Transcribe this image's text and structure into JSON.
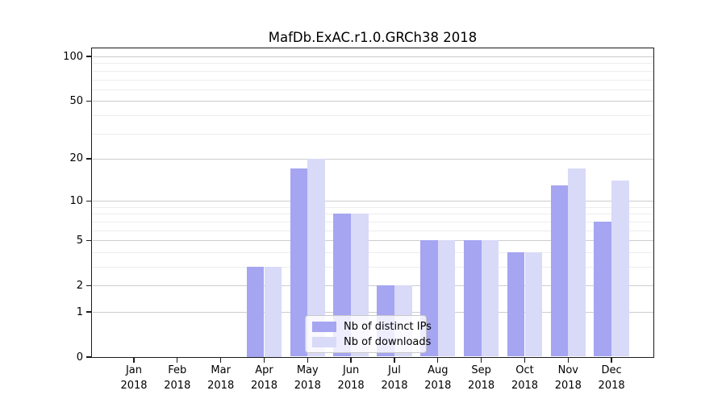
{
  "chart_data": {
    "type": "bar",
    "title": "MafDb.ExAC.r1.0.GRCh38 2018",
    "categories": [
      "Jan 2018",
      "Feb 2018",
      "Mar 2018",
      "Apr 2018",
      "May 2018",
      "Jun 2018",
      "Jul 2018",
      "Aug 2018",
      "Sep 2018",
      "Oct 2018",
      "Nov 2018",
      "Dec 2018"
    ],
    "months": [
      "Jan",
      "Feb",
      "Mar",
      "Apr",
      "May",
      "Jun",
      "Jul",
      "Aug",
      "Sep",
      "Oct",
      "Nov",
      "Dec"
    ],
    "year": "2018",
    "series": [
      {
        "name": "Nb of distinct IPs",
        "color": "#a5a5f2",
        "values": [
          0,
          0,
          0,
          3,
          17,
          8,
          2,
          5,
          5,
          4,
          13,
          7
        ]
      },
      {
        "name": "Nb of downloads",
        "color": "#d9d9f8",
        "values": [
          0,
          0,
          0,
          3,
          20,
          8,
          2,
          5,
          5,
          4,
          17,
          14
        ]
      }
    ],
    "xlabel": "",
    "ylabel": "",
    "yscale": "log1p",
    "ylim": [
      0,
      113
    ],
    "yticks": [
      0,
      1,
      2,
      5,
      10,
      20,
      50,
      100
    ],
    "yticks_minor": [
      3,
      4,
      6,
      7,
      8,
      9,
      30,
      40,
      60,
      70,
      80,
      90
    ],
    "grid": "horizontal, behind bars",
    "legend_position": "lower center inside"
  },
  "legend": {
    "items": [
      {
        "label": "Nb of distinct IPs",
        "color": "#a5a5f2"
      },
      {
        "label": "Nb of downloads",
        "color": "#d9d9f8"
      }
    ]
  },
  "colors": {
    "bar_distinct_ips": "#a5a5f2",
    "bar_downloads": "#d9d9f8",
    "grid_major": "#cdcdcd",
    "grid_minor": "#ededed",
    "axis": "#1a1a1a",
    "background": "#ffffff"
  }
}
